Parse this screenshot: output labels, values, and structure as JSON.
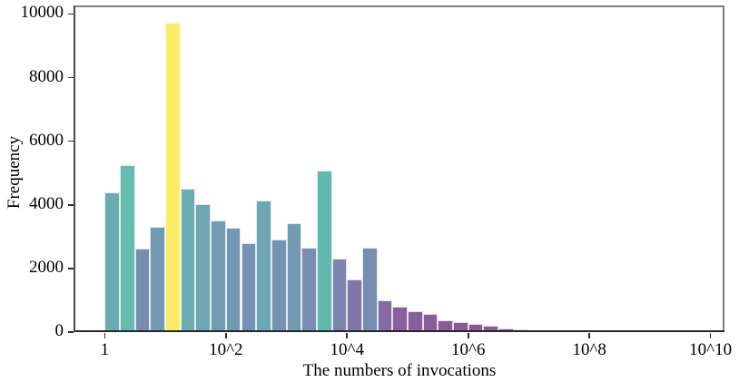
{
  "chart_data": {
    "type": "bar",
    "subtype": "histogram",
    "title": "",
    "xlabel": "The numbers of invocations",
    "ylabel": "Frequency",
    "x_scale": "log",
    "grid": false,
    "legend": false,
    "x_ticks": [
      {
        "label": "1",
        "log10": 0
      },
      {
        "label": "10^2",
        "log10": 2
      },
      {
        "label": "10^4",
        "log10": 4
      },
      {
        "label": "10^6",
        "log10": 6
      },
      {
        "label": "10^8",
        "log10": 8
      },
      {
        "label": "10^10",
        "log10": 10
      }
    ],
    "y_ticks": [
      {
        "label": "0",
        "value": 0
      },
      {
        "label": "2000",
        "value": 2000
      },
      {
        "label": "4000",
        "value": 4000
      },
      {
        "label": "6000",
        "value": 6000
      },
      {
        "label": "8000",
        "value": 8000
      },
      {
        "label": "10000",
        "value": 10000
      }
    ],
    "ylim": [
      0,
      10270
    ],
    "xlim_log10": [
      -0.5,
      10.23
    ],
    "bin_start_log10": 0,
    "bin_width_log10": 0.25,
    "bin_count": 30,
    "colormap_note": "viridis mapped to bar height, ~0.7 alpha on white",
    "values": [
      4400,
      5250,
      2620,
      3320,
      9730,
      4510,
      4020,
      3500,
      3280,
      2810,
      4130,
      2900,
      3420,
      2660,
      5080,
      2300,
      1660,
      2650,
      1000,
      810,
      670,
      560,
      370,
      300,
      265,
      200,
      115,
      85,
      60,
      40
    ],
    "bar_colors": [
      "#6babb2",
      "#64bbae",
      "#788cb0",
      "#729ab2",
      "#fcec68",
      "#6badb2",
      "#6ea5b2",
      "#719cb2",
      "#7399b2",
      "#7690b1",
      "#6da7b2",
      "#7692b1",
      "#729bb2",
      "#788db0",
      "#63b8ad",
      "#7d85af",
      "#8077a9",
      "#788db0",
      "#8469a3",
      "#86619e",
      "#875f9c",
      "#885d9a",
      "#895b97",
      "#895a95",
      "#8a5994",
      "#8a5893",
      "#8b5791",
      "#8b5690",
      "#8b5690",
      "#8b558f"
    ]
  }
}
